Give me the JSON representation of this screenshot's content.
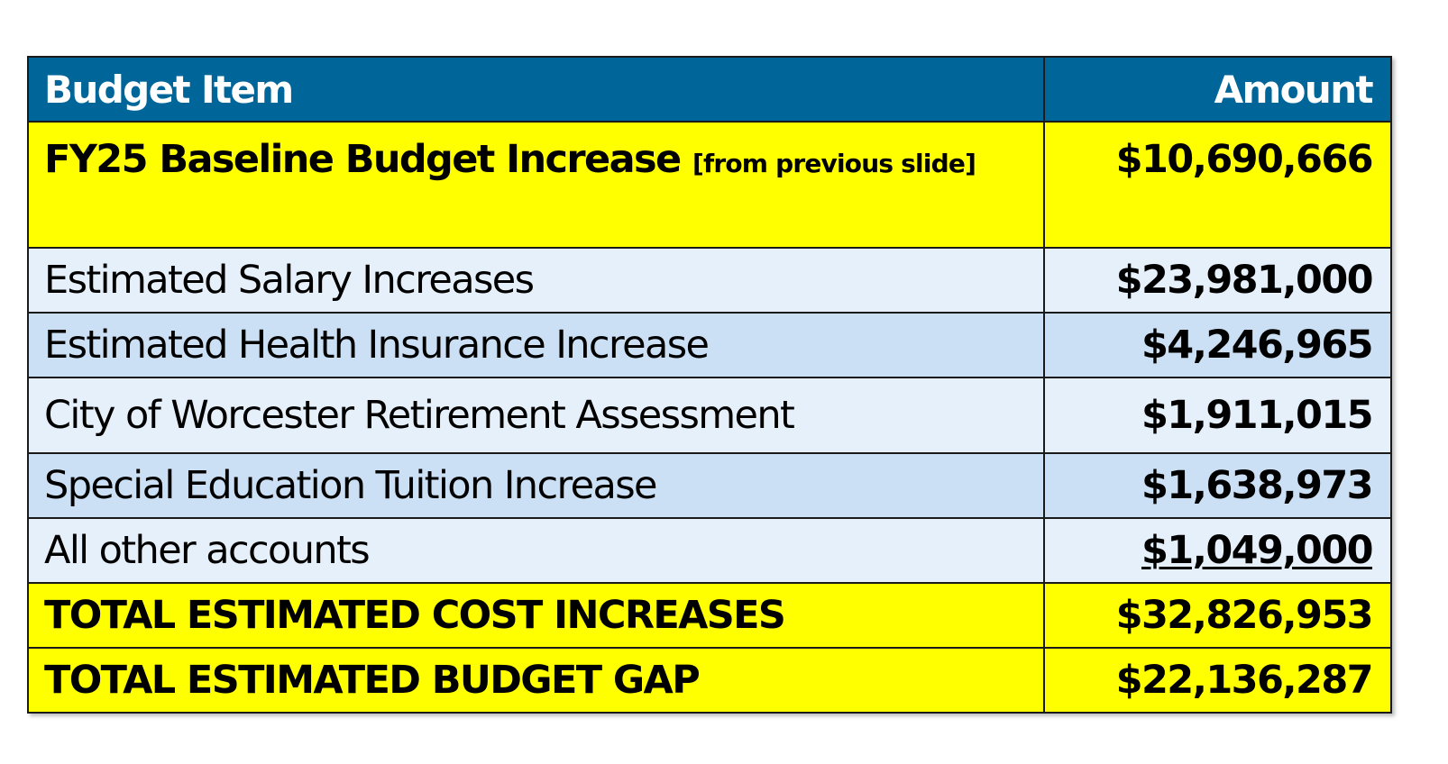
{
  "table": {
    "header": {
      "item": "Budget Item",
      "amount": "Amount"
    },
    "baseline": {
      "label": "FY25 Baseline Budget Increase",
      "note": "[from previous slide]",
      "amount": "$10,690,666"
    },
    "rows": [
      {
        "label": "Estimated Salary Increases",
        "amount": "$23,981,000"
      },
      {
        "label": "Estimated Health Insurance Increase",
        "amount": "$4,246,965"
      },
      {
        "label": "City of Worcester Retirement Assessment",
        "amount": "$1,911,015"
      },
      {
        "label": "Special Education Tuition Increase",
        "amount": "$1,638,973"
      },
      {
        "label": "All other accounts",
        "amount": "$1,049,000"
      }
    ],
    "totals": [
      {
        "label": "TOTAL ESTIMATED COST INCREASES",
        "amount": "$32,826,953"
      },
      {
        "label": "TOTAL ESTIMATED BUDGET GAP",
        "amount": "$22,136,287"
      }
    ],
    "colors": {
      "header_bg": "#006699",
      "highlight": "#ffff00",
      "row_light": "#e6f0fb",
      "row_mid": "#cce0f5"
    }
  }
}
